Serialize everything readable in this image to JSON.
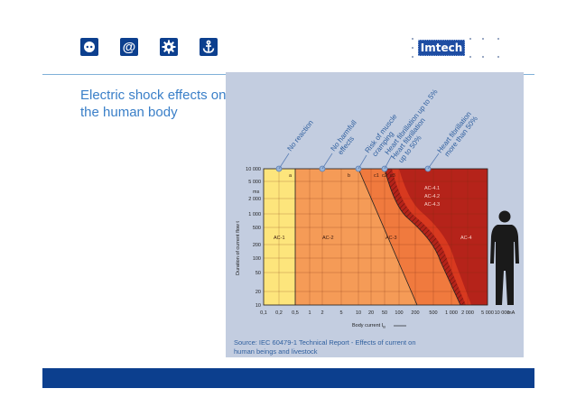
{
  "toolbar": {
    "icons": [
      "power-socket-icon",
      "at-sign-icon",
      "gear-icon",
      "anchor-icon"
    ],
    "at_symbol": "@"
  },
  "logo": {
    "text": "Imtech"
  },
  "slide": {
    "title": "Electric shock effects on the human body"
  },
  "figure": {
    "source": "Source: IEC 60479-1 Technical Report - Effects of current on human beings and livestock",
    "labels": {
      "no_reaction": "No reaction",
      "no_harmful": "No harmfull",
      "effects": "effects",
      "risk1": "Risk of muscle",
      "risk2": "cramping",
      "fib5_1": "Heart fibrillation up to 5%",
      "fib50_1": "Heart fibrillation",
      "fib50_2": "up to 50%",
      "fibm_1": "Heart fibrillation",
      "fibm_2": "more than 50%"
    },
    "zones": [
      "AC-1",
      "AC-2",
      "AC-3",
      "AC-4"
    ],
    "subzones": [
      "AC-4.1",
      "AC-4.2",
      "AC-4.3"
    ],
    "curve_letters": [
      "a",
      "b",
      "c1",
      "c2",
      "c3"
    ],
    "y_axis": {
      "label": "Duration of current flow t",
      "unit": "ms",
      "ticks": [
        "10 000",
        "5 000",
        "2 000",
        "1 000",
        "500",
        "200",
        "100",
        "50",
        "20",
        "10"
      ]
    },
    "x_axis": {
      "label": "Body current I",
      "subscript": "B",
      "unit": "mA",
      "ticks": [
        "0,1",
        "0,2",
        "0,5",
        "1",
        "2",
        "5",
        "10",
        "20",
        "50",
        "100",
        "200",
        "500",
        "1 000",
        "2 000",
        "5 000",
        "10 000"
      ]
    },
    "colors": {
      "ac1": "#fde57c",
      "ac2": "#f59b57",
      "ac3": "#f07a3e",
      "ac4": "#b5231a",
      "band": "#d8391f"
    }
  }
}
